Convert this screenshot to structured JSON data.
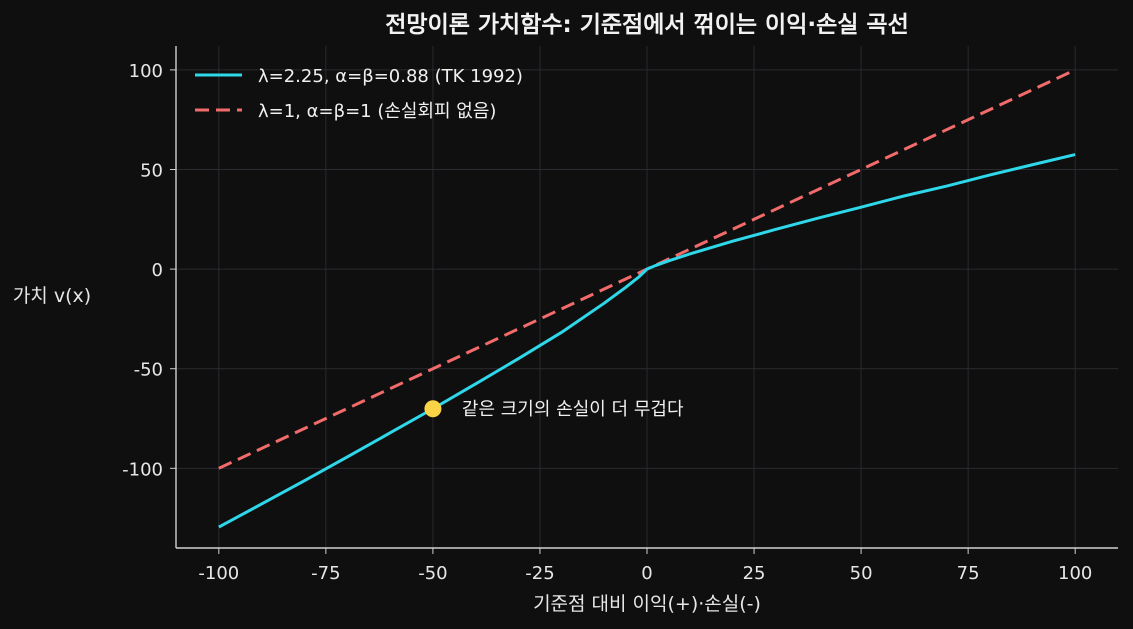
{
  "chart_data": {
    "type": "line",
    "title": "전망이론 가치함수: 기준점에서 꺾이는 이익·손실 곡선",
    "xlabel": "기준점 대비 이익(+)·손실(-)",
    "ylabel": "가치 v(x)",
    "xlim": [
      -110,
      110
    ],
    "ylim": [
      -140,
      112
    ],
    "xticks": [
      -100,
      -75,
      -50,
      -25,
      0,
      25,
      50,
      75,
      100
    ],
    "yticks": [
      -100,
      -50,
      0,
      50,
      100
    ],
    "grid": true,
    "legend_position": "top-left",
    "series": [
      {
        "name": "λ=2.25, α=β=0.88 (TK 1992)",
        "color": "#2ed8ea",
        "style": "solid",
        "params": {
          "lambda": 2.25,
          "alpha": 0.88,
          "beta": 0.88
        },
        "x": [
          -100,
          -90,
          -80,
          -70,
          -60,
          -50,
          -40,
          -30,
          -20,
          -10,
          -5,
          -2,
          0,
          2,
          5,
          10,
          20,
          30,
          40,
          50,
          60,
          70,
          80,
          90,
          100
        ],
        "y": [
          -129.5,
          -117.9,
          -106.2,
          -94.3,
          -82.2,
          -70.1,
          -57.6,
          -44.9,
          -31.8,
          -17.1,
          -9.2,
          -4.1,
          0,
          1.8,
          4.1,
          7.6,
          14.0,
          19.9,
          25.6,
          31.1,
          36.7,
          41.7,
          47.2,
          52.4,
          57.5
        ]
      },
      {
        "name": "λ=1, α=β=1 (손실회피 없음)",
        "color": "#f26b6b",
        "style": "dashed",
        "params": {
          "lambda": 1,
          "alpha": 1,
          "beta": 1
        },
        "x": [
          -100,
          100
        ],
        "y": [
          -100,
          100
        ]
      }
    ],
    "annotations": [
      {
        "x": -50,
        "y": -70.1,
        "marker_color": "#fbd346",
        "text": "같은 크기의 손실이 더 무겁다"
      }
    ]
  }
}
